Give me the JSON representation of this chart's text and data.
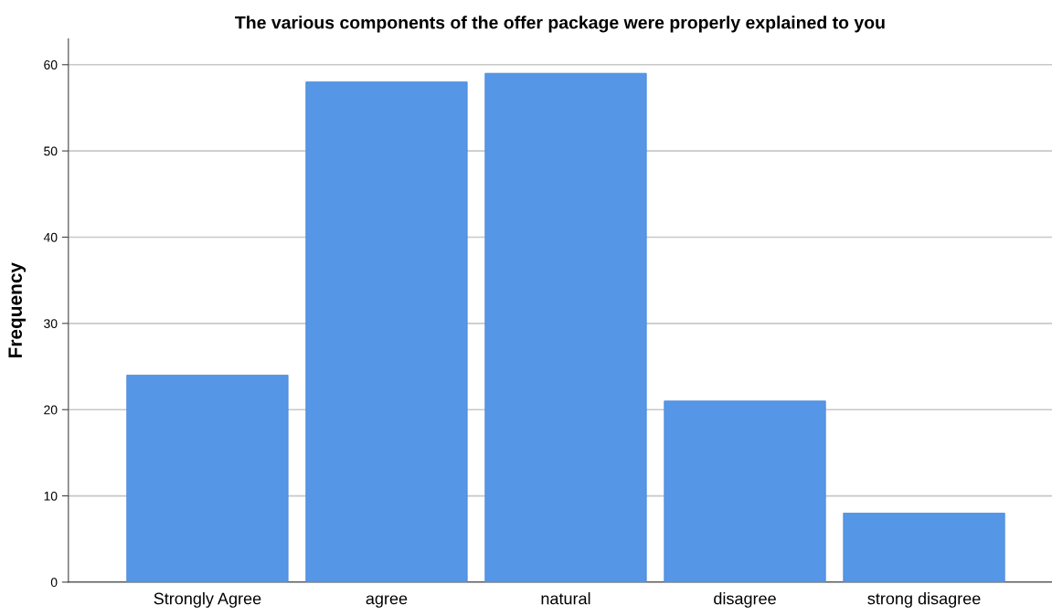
{
  "chart_data": {
    "type": "bar",
    "title": "The various components of the offer package were properly explained to you",
    "ylabel": "Frequency",
    "categories": [
      "Strongly Agree",
      "agree",
      "natural",
      "disagree",
      "strong disagree"
    ],
    "values": [
      24,
      58,
      59,
      21,
      8
    ],
    "color": "#5596e6",
    "ylim": [
      0,
      63
    ],
    "yticks": [
      0,
      10,
      20,
      30,
      40,
      50,
      60
    ],
    "grid": "y"
  }
}
